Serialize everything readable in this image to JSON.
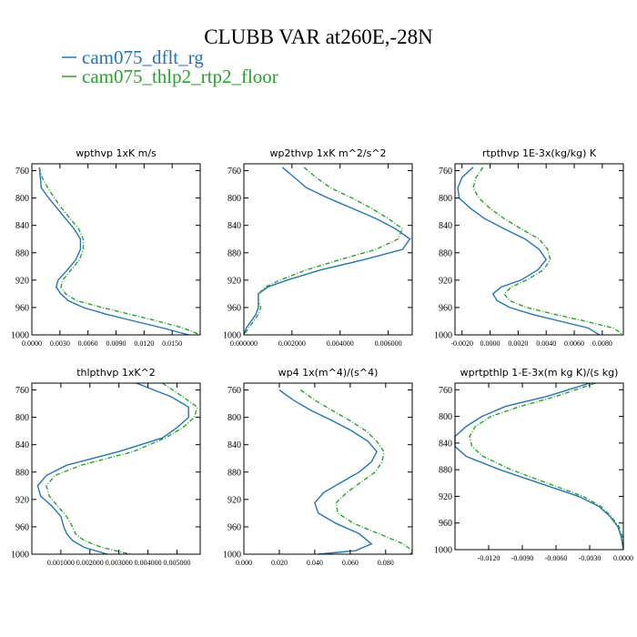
{
  "title": "CLUBB VAR at260E,-28N",
  "legend": [
    {
      "label": "cam075_dflt_rg",
      "color": "#1f77b4"
    },
    {
      "label": "cam075_thlp2_rtp2_floor",
      "color": "#2ca02c"
    }
  ],
  "chart_data": [
    {
      "type": "line",
      "title": "wpthvp  1xK m/s",
      "xlim": [
        0,
        0.018
      ],
      "ylim": [
        1000,
        750
      ],
      "y_reversed": true,
      "xticks": [
        0,
        0.003,
        0.006,
        0.009,
        0.012,
        0.015
      ],
      "xtick_labels": [
        "0.0000",
        "0.0030",
        "0.0060",
        "0.0090",
        "0.0120",
        "0.0150"
      ],
      "yticks": [
        760,
        800,
        840,
        880,
        920,
        960,
        1000
      ],
      "y": [
        755,
        770,
        785,
        800,
        815,
        830,
        845,
        860,
        875,
        890,
        905,
        920,
        930,
        940,
        950,
        960,
        970,
        980,
        990,
        1000
      ],
      "series": [
        {
          "name": "cam075_dflt_rg",
          "x": [
            0.0008,
            0.0009,
            0.001,
            0.0018,
            0.0027,
            0.0036,
            0.0045,
            0.0052,
            0.0052,
            0.0047,
            0.0038,
            0.0028,
            0.0026,
            0.0031,
            0.0039,
            0.0055,
            0.008,
            0.011,
            0.014,
            0.0168
          ]
        },
        {
          "name": "cam075_thlp2_rtp2_floor",
          "x": [
            0.0008,
            0.0011,
            0.0017,
            0.0024,
            0.0032,
            0.0041,
            0.005,
            0.0055,
            0.0055,
            0.0051,
            0.0042,
            0.0033,
            0.0031,
            0.0036,
            0.0048,
            0.0075,
            0.0105,
            0.0135,
            0.0162,
            0.018
          ]
        }
      ]
    },
    {
      "type": "line",
      "title": "wp2thvp  1xK m^2/s^2",
      "xlim": [
        0,
        0.007
      ],
      "ylim": [
        1000,
        750
      ],
      "y_reversed": true,
      "xticks": [
        0,
        0.002,
        0.004,
        0.006
      ],
      "xtick_labels": [
        "0.000000",
        "0.002000",
        "0.004000",
        "0.006000"
      ],
      "yticks": [
        760,
        800,
        840,
        880,
        920,
        960,
        1000
      ],
      "y": [
        755,
        770,
        785,
        800,
        815,
        830,
        845,
        860,
        875,
        890,
        905,
        920,
        930,
        940,
        950,
        960,
        970,
        980,
        990,
        1000
      ],
      "series": [
        {
          "name": "cam075_dflt_rg",
          "x": [
            0.0016,
            0.0021,
            0.0026,
            0.0035,
            0.0045,
            0.0055,
            0.0063,
            0.0069,
            0.0066,
            0.005,
            0.0032,
            0.0018,
            0.001,
            0.0006,
            0.0006,
            0.0006,
            0.0005,
            0.0003,
            0.0001,
            0.0
          ]
        },
        {
          "name": "cam075_thlp2_rtp2_floor",
          "x": [
            0.0025,
            0.003,
            0.0036,
            0.0045,
            0.0053,
            0.006,
            0.0066,
            0.0064,
            0.0055,
            0.004,
            0.0026,
            0.0015,
            0.0009,
            0.0006,
            0.0006,
            0.0007,
            0.0006,
            0.0004,
            0.0002,
            0.0
          ]
        }
      ]
    },
    {
      "type": "line",
      "title": "rtpthvp  1E-3x(kg/kg) K",
      "xlim": [
        -0.0025,
        0.0095
      ],
      "ylim": [
        1000,
        750
      ],
      "y_reversed": true,
      "xticks": [
        -0.002,
        0,
        0.002,
        0.004,
        0.006,
        0.008
      ],
      "xtick_labels": [
        "-0.0020",
        "0.0000",
        "0.0020",
        "0.0040",
        "0.0060",
        "0.0080"
      ],
      "yticks": [
        760,
        800,
        840,
        880,
        920,
        960,
        1000
      ],
      "y": [
        755,
        770,
        785,
        800,
        815,
        830,
        845,
        860,
        875,
        890,
        905,
        920,
        930,
        940,
        950,
        960,
        970,
        980,
        990,
        1000
      ],
      "series": [
        {
          "name": "cam075_dflt_rg",
          "x": [
            -0.0012,
            -0.002,
            -0.0023,
            -0.0022,
            -0.0014,
            -0.0004,
            0.001,
            0.0025,
            0.0035,
            0.004,
            0.0034,
            0.0022,
            0.0008,
            0.0002,
            0.0005,
            0.0014,
            0.003,
            0.005,
            0.007,
            0.0078
          ]
        },
        {
          "name": "cam075_thlp2_rtp2_floor",
          "x": [
            -0.0005,
            -0.001,
            -0.0012,
            -0.0008,
            0.0,
            0.001,
            0.0022,
            0.0035,
            0.0041,
            0.0043,
            0.0038,
            0.0026,
            0.0015,
            0.001,
            0.0014,
            0.0026,
            0.0046,
            0.0068,
            0.0088,
            0.0095
          ]
        }
      ]
    },
    {
      "type": "line",
      "title": "thlpthvp  1xK^2",
      "xlim": [
        0,
        0.0058
      ],
      "ylim": [
        1000,
        750
      ],
      "y_reversed": true,
      "xticks": [
        0.001,
        0.002,
        0.003,
        0.004,
        0.005
      ],
      "xtick_labels": [
        "0.001000",
        "0.002000",
        "0.003000",
        "0.004000",
        "0.005000"
      ],
      "yticks": [
        760,
        800,
        840,
        880,
        920,
        960,
        1000
      ],
      "y": [
        750,
        770,
        785,
        800,
        815,
        830,
        850,
        870,
        885,
        900,
        915,
        930,
        945,
        960,
        970,
        980,
        990,
        1000
      ],
      "series": [
        {
          "name": "cam075_dflt_rg",
          "x": [
            0.0036,
            0.0048,
            0.0054,
            0.0054,
            0.005,
            0.0045,
            0.003,
            0.0012,
            0.0005,
            0.0002,
            0.0003,
            0.0007,
            0.001,
            0.0011,
            0.0012,
            0.0014,
            0.0018,
            0.0026
          ]
        },
        {
          "name": "cam075_thlp2_rtp2_floor",
          "x": [
            0.0045,
            0.0052,
            0.0057,
            0.0056,
            0.0052,
            0.0046,
            0.0035,
            0.0017,
            0.0008,
            0.0005,
            0.0006,
            0.0009,
            0.0012,
            0.0014,
            0.0015,
            0.0018,
            0.0024,
            0.0034
          ]
        }
      ]
    },
    {
      "type": "line",
      "title": "wp4  1x(m^4)/(s^4)",
      "xlim": [
        0,
        0.095
      ],
      "ylim": [
        1000,
        750
      ],
      "y_reversed": true,
      "xticks": [
        0,
        0.02,
        0.04,
        0.06,
        0.08
      ],
      "xtick_labels": [
        "0.000",
        "0.020",
        "0.040",
        "0.060",
        "0.080"
      ],
      "yticks": [
        760,
        800,
        840,
        880,
        920,
        960,
        1000
      ],
      "y": [
        760,
        775,
        790,
        805,
        820,
        835,
        850,
        865,
        880,
        895,
        910,
        925,
        940,
        955,
        970,
        985,
        995,
        1000
      ],
      "series": [
        {
          "name": "cam075_dflt_rg",
          "x": [
            0.02,
            0.028,
            0.038,
            0.05,
            0.061,
            0.07,
            0.075,
            0.072,
            0.065,
            0.055,
            0.045,
            0.04,
            0.042,
            0.052,
            0.065,
            0.072,
            0.063,
            0.042
          ]
        },
        {
          "name": "cam075_thlp2_rtp2_floor",
          "x": [
            0.032,
            0.04,
            0.05,
            0.06,
            0.069,
            0.075,
            0.079,
            0.078,
            0.074,
            0.066,
            0.058,
            0.052,
            0.053,
            0.062,
            0.076,
            0.09,
            0.095,
            0.094
          ]
        }
      ]
    },
    {
      "type": "line",
      "title": "wprtpthlp  1-E-3x(m kg K)/(s kg)",
      "xlim": [
        -0.015,
        0
      ],
      "ylim": [
        1000,
        750
      ],
      "y_reversed": true,
      "xticks": [
        -0.012,
        -0.009,
        -0.006,
        -0.003,
        0
      ],
      "xtick_labels": [
        "-0.0120",
        "-0.0090",
        "-0.0060",
        "-0.0030",
        "0.0000"
      ],
      "yticks": [
        760,
        800,
        840,
        880,
        920,
        960,
        1000
      ],
      "y": [
        750,
        770,
        785,
        800,
        815,
        830,
        845,
        860,
        880,
        900,
        920,
        935,
        950,
        965,
        980,
        990,
        1000
      ],
      "series": [
        {
          "name": "cam075_dflt_rg",
          "x": [
            -0.003,
            -0.0068,
            -0.0105,
            -0.0126,
            -0.014,
            -0.015,
            -0.015,
            -0.014,
            -0.011,
            -0.0075,
            -0.004,
            -0.0022,
            -0.0012,
            -0.0005,
            -0.0002,
            -0.0001,
            0
          ]
        },
        {
          "name": "cam075_thlp2_rtp2_floor",
          "x": [
            -0.0025,
            -0.006,
            -0.0092,
            -0.0118,
            -0.0132,
            -0.0137,
            -0.0135,
            -0.0125,
            -0.01,
            -0.0068,
            -0.0036,
            -0.002,
            -0.0011,
            -0.0004,
            -0.0001,
            0,
            0
          ]
        }
      ]
    }
  ]
}
